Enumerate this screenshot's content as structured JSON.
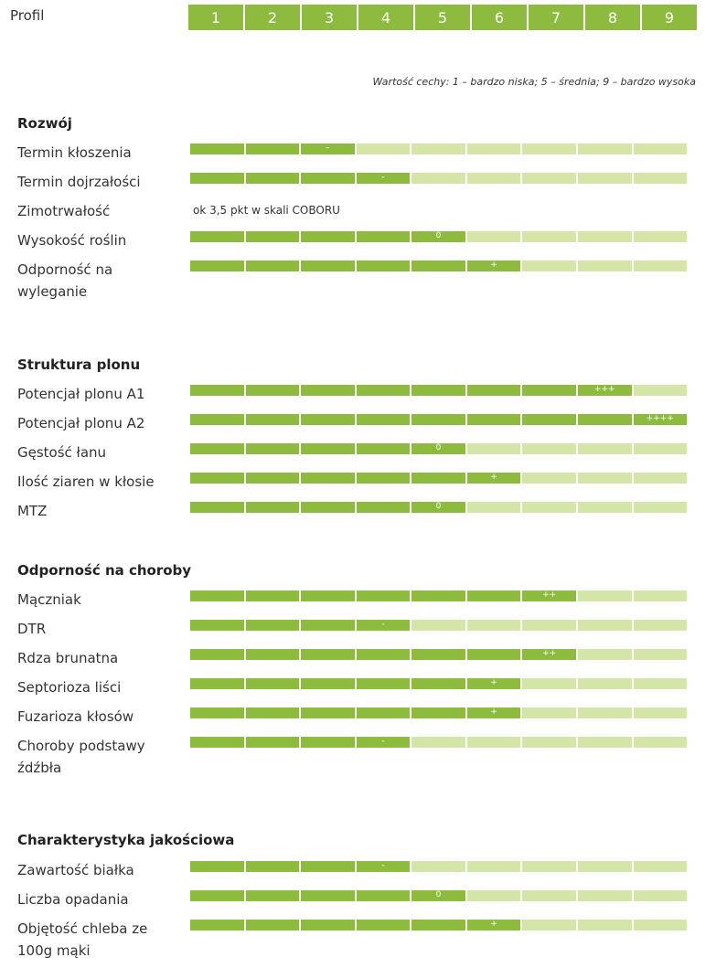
{
  "header": {
    "title": "Profil",
    "scale": [
      "1",
      "2",
      "3",
      "4",
      "5",
      "6",
      "7",
      "8",
      "9"
    ]
  },
  "legend": "Wartość cechy: 1 – bardzo niska; 5 – średnia; 9 – bardzo wysoka",
  "colors": {
    "filled": "#8cbb3e",
    "empty": "#d4e5a8"
  },
  "chart_data": {
    "type": "bar",
    "scale_max": 9,
    "sections": [
      {
        "title": "Rozwój",
        "rows": [
          {
            "label": "Termin kłoszenia",
            "value": 3,
            "mark": "–"
          },
          {
            "label": "Termin dojrzałości",
            "value": 4,
            "mark": "-"
          },
          {
            "label": "Zimotrwałość",
            "note": "ok 3,5 pkt w skali COBORU"
          },
          {
            "label": "Wysokość roślin",
            "value": 5,
            "mark": "0"
          },
          {
            "label": "Odporność na wyleganie",
            "value": 6,
            "mark": "+"
          }
        ]
      },
      {
        "title": "Struktura plonu",
        "rows": [
          {
            "label": "Potencjał plonu A1",
            "value": 8,
            "mark": "+++"
          },
          {
            "label": "Potencjał plonu A2",
            "value": 9,
            "mark": "++++"
          },
          {
            "label": "Gęstość łanu",
            "value": 5,
            "mark": "0"
          },
          {
            "label": "Ilość ziaren w kłosie",
            "value": 6,
            "mark": "+"
          },
          {
            "label": "MTZ",
            "value": 5,
            "mark": "0"
          }
        ]
      },
      {
        "title": "Odporność na choroby",
        "rows": [
          {
            "label": "Mączniak",
            "value": 7,
            "mark": "++"
          },
          {
            "label": "DTR",
            "value": 4,
            "mark": "-"
          },
          {
            "label": "Rdza brunatna",
            "value": 7,
            "mark": "++"
          },
          {
            "label": "Septorioza liści",
            "value": 6,
            "mark": "+"
          },
          {
            "label": "Fuzarioza kłosów",
            "value": 6,
            "mark": "+"
          },
          {
            "label": "Choroby podstawy źdźbła",
            "value": 4,
            "mark": "-"
          }
        ]
      },
      {
        "title": "Charakterystyka jakościowa",
        "rows": [
          {
            "label": "Zawartość białka",
            "value": 4,
            "mark": "-"
          },
          {
            "label": "Liczba opadania",
            "value": 5,
            "mark": "0"
          },
          {
            "label": "Objętość chleba ze 100g mąki",
            "value": 6,
            "mark": "+"
          }
        ]
      }
    ]
  }
}
